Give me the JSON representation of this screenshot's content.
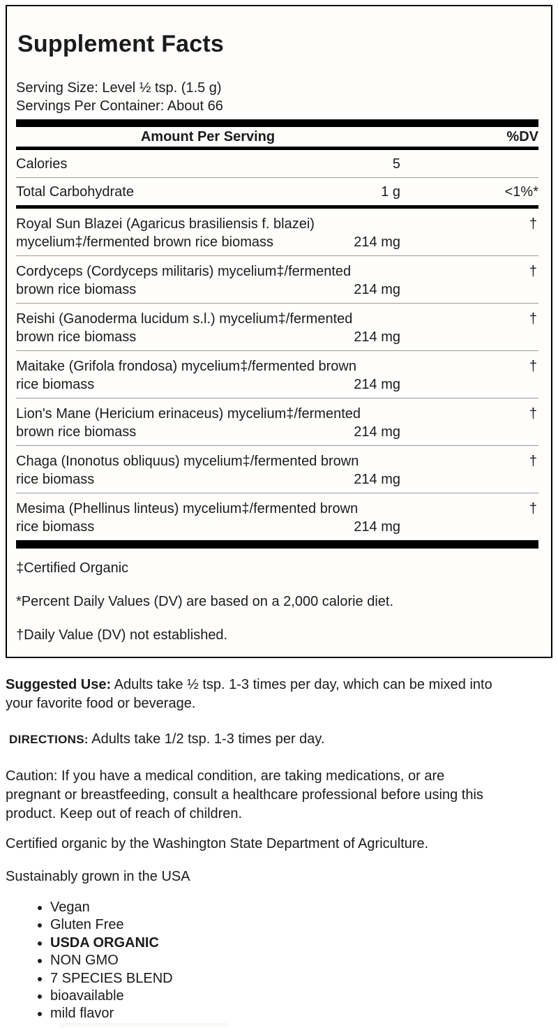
{
  "panel": {
    "title": "Supplement Facts",
    "serving_size": "Serving Size: Level ½ tsp. (1.5 g)",
    "servings_per_container": "Servings Per Container: About 66",
    "header": {
      "amount": "Amount Per Serving",
      "dv": "%DV"
    },
    "calories": {
      "name": "Calories",
      "amount": "5"
    },
    "carb": {
      "name": "Total Carbohydrate",
      "amount": "1 g",
      "dv": "<1%*"
    },
    "ingredients": [
      {
        "line1": "Royal Sun Blazei (Agaricus brasiliensis f. blazei)",
        "line2": "mycelium‡/fermented brown rice biomass",
        "amount": "214 mg",
        "dv": "†"
      },
      {
        "line1": "Cordyceps (Cordyceps militaris) mycelium‡/fermented",
        "line2": "brown rice biomass",
        "amount": "214 mg",
        "dv": "†"
      },
      {
        "line1": "Reishi (Ganoderma lucidum s.l.) mycelium‡/fermented",
        "line2": "brown rice biomass",
        "amount": "214 mg",
        "dv": "†"
      },
      {
        "line1": "Maitake (Grifola frondosa) mycelium‡/fermented brown",
        "line2": "rice biomass",
        "amount": "214 mg",
        "dv": "†"
      },
      {
        "line1": "Lion's Mane (Hericium erinaceus) mycelium‡/fermented",
        "line2": "brown rice biomass",
        "amount": "214 mg",
        "dv": "†"
      },
      {
        "line1": "Chaga (Inonotus obliquus) mycelium‡/fermented brown",
        "line2": "rice biomass",
        "amount": "214 mg",
        "dv": "†"
      },
      {
        "line1": "Mesima (Phellinus linteus) mycelium‡/fermented brown",
        "line2": "rice biomass",
        "amount": "214 mg",
        "dv": "†"
      }
    ],
    "footnotes": {
      "organic": "‡Certified Organic",
      "dv_basis": "*Percent Daily Values (DV) are based on a 2,000 calorie diet.",
      "dv_not_established": "†Daily Value (DV) not established."
    }
  },
  "body": {
    "suggested_use": {
      "lead": "Suggested Use:",
      "line1": " Adults take ½ tsp. 1-3 times per day, which can be mixed into",
      "line2": "your favorite food or beverage."
    },
    "directions": {
      "lead": "DIRECTIONS:",
      "text": " Adults take 1/2 tsp. 1-3 times per day."
    },
    "caution_lines": [
      "Caution: If you have a medical condition, are taking medications, or are",
      "pregnant or breastfeeding, consult a healthcare professional before using this",
      "product. Keep out of reach of children."
    ],
    "certified": "Certified organic by the Washington State Department of Agriculture.",
    "sustainably": "Sustainably grown in the USA",
    "bullets": [
      "Vegan",
      "Gluten Free",
      "USDA ORGANIC",
      "NON GMO",
      "7 SPECIES BLEND",
      "bioavailable",
      "mild flavor"
    ]
  }
}
